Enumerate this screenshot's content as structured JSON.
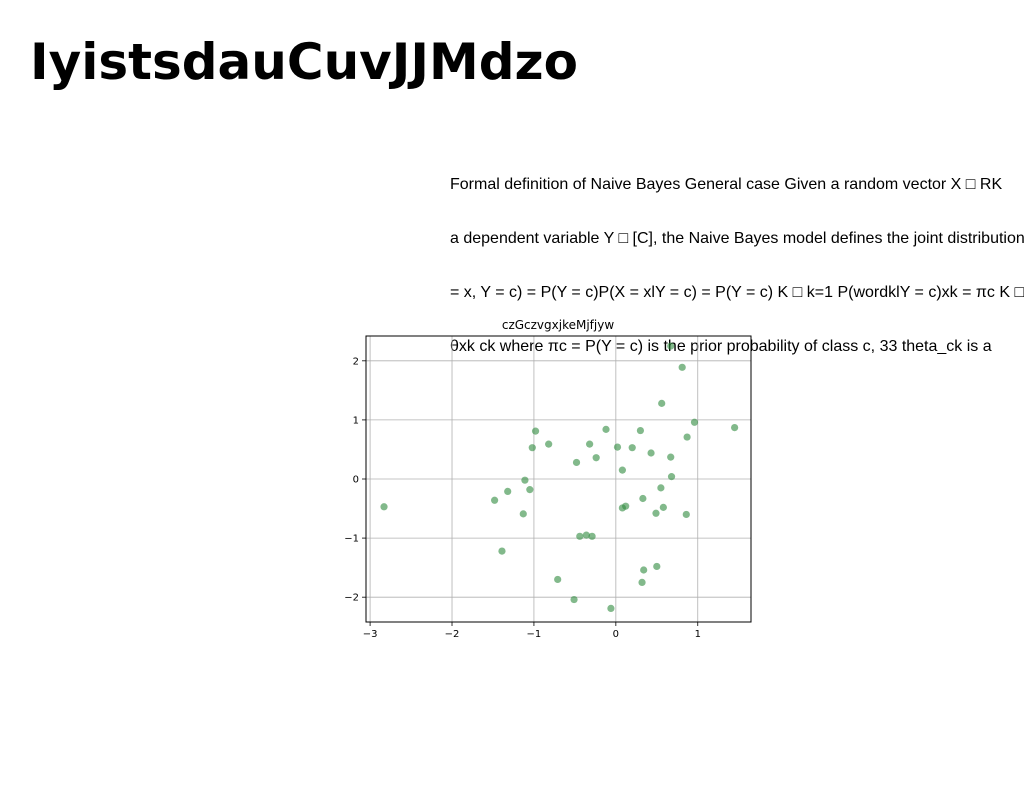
{
  "page": {
    "title": "IyistsdauCuvJJMdzo",
    "paragraph_lines": [
      "Formal definition of Naive Bayes General case Given a random vector X □ RK",
      "a dependent variable Y □ [C], the Naive Bayes model defines the joint distribution",
      "= x, Y = c) = P(Y = c)P(X = xlY = c) = P(Y = c) K □ k=1 P(wordklY = c)xk = πc K □",
      "θxk ck where πc = P(Y = c) is the prior probability of class c, 33 theta_ck is a"
    ]
  },
  "chart_data": {
    "type": "scatter",
    "title": "czGczvgxjkeMjfjyw",
    "xlabel": "",
    "ylabel": "",
    "xlim": [
      -3.05,
      1.65
    ],
    "ylim": [
      -2.42,
      2.42
    ],
    "xticks": [
      -3,
      -2,
      -1,
      0,
      1
    ],
    "yticks": [
      -2,
      -1,
      0,
      1,
      2
    ],
    "xtick_labels": [
      "−3",
      "−2",
      "−1",
      "0",
      "1"
    ],
    "ytick_labels": [
      "−2",
      "−1",
      "0",
      "1",
      "2"
    ],
    "grid": true,
    "marker_color": "#2e8b3e",
    "marker_alpha": 0.6,
    "series": [
      {
        "points": [
          [
            0.67,
            2.25
          ],
          [
            0.81,
            1.89
          ],
          [
            0.56,
            1.28
          ],
          [
            0.96,
            0.96
          ],
          [
            1.45,
            0.87
          ],
          [
            0.87,
            0.71
          ],
          [
            0.3,
            0.82
          ],
          [
            -0.12,
            0.84
          ],
          [
            -0.98,
            0.81
          ],
          [
            -0.32,
            0.59
          ],
          [
            0.02,
            0.54
          ],
          [
            0.2,
            0.53
          ],
          [
            0.43,
            0.44
          ],
          [
            -0.82,
            0.59
          ],
          [
            -1.02,
            0.53
          ],
          [
            -0.24,
            0.36
          ],
          [
            0.67,
            0.37
          ],
          [
            -0.48,
            0.28
          ],
          [
            0.08,
            0.15
          ],
          [
            0.68,
            0.04
          ],
          [
            -1.11,
            -0.02
          ],
          [
            -1.05,
            -0.18
          ],
          [
            -1.32,
            -0.21
          ],
          [
            -1.48,
            -0.36
          ],
          [
            -2.83,
            -0.47
          ],
          [
            -1.13,
            -0.59
          ],
          [
            0.55,
            -0.15
          ],
          [
            0.33,
            -0.33
          ],
          [
            0.58,
            -0.48
          ],
          [
            0.49,
            -0.58
          ],
          [
            0.86,
            -0.6
          ],
          [
            0.12,
            -0.46
          ],
          [
            0.08,
            -0.49
          ],
          [
            -0.44,
            -0.97
          ],
          [
            -0.36,
            -0.95
          ],
          [
            -0.29,
            -0.97
          ],
          [
            -1.39,
            -1.22
          ],
          [
            0.5,
            -1.48
          ],
          [
            0.34,
            -1.54
          ],
          [
            -0.71,
            -1.7
          ],
          [
            0.32,
            -1.75
          ],
          [
            -0.51,
            -2.04
          ],
          [
            -0.06,
            -2.19
          ]
        ]
      }
    ]
  }
}
